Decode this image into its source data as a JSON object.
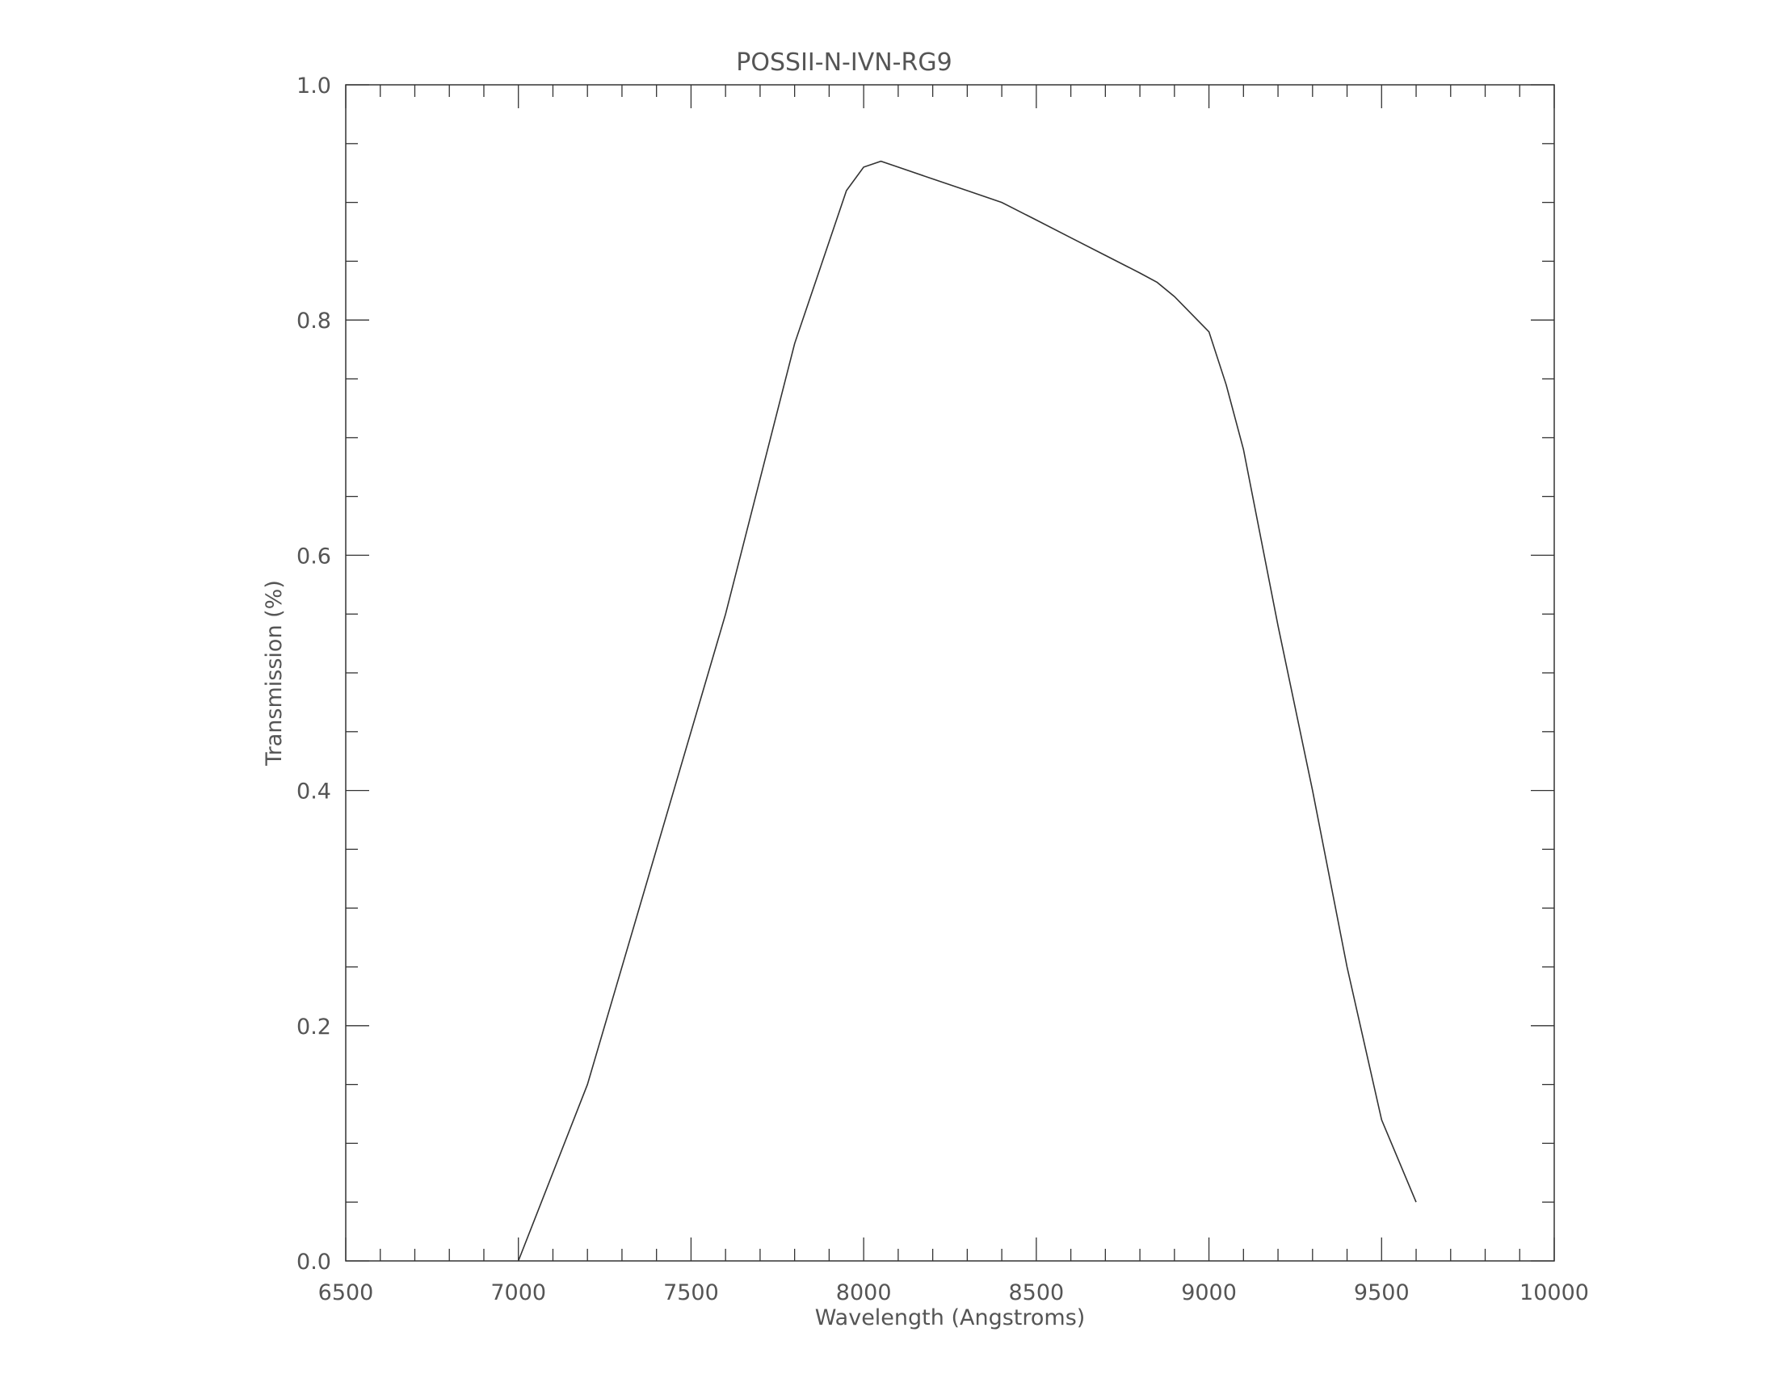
{
  "chart_data": {
    "type": "line",
    "title": "POSSII-N-IVN-RG9",
    "xlabel": "Wavelength (Angstroms)",
    "ylabel": "Transmission (%)",
    "xlim": [
      6500,
      10000
    ],
    "ylim": [
      0.0,
      1.0
    ],
    "x_ticks": [
      6500,
      7000,
      7500,
      8000,
      8500,
      9000,
      9500,
      10000
    ],
    "x_tick_labels": [
      "6500",
      "7000",
      "7500",
      "8000",
      "8500",
      "9000",
      "9500",
      "10000"
    ],
    "y_ticks": [
      0.0,
      0.2,
      0.4,
      0.6,
      0.8,
      1.0
    ],
    "y_tick_labels": [
      "0.0",
      "0.2",
      "0.4",
      "0.6",
      "0.8",
      "1.0"
    ],
    "x_minor_step": 100,
    "y_minor_step": 0.05,
    "grid": false,
    "line_color": "#333333",
    "series": [
      {
        "x": [
          7000,
          7200,
          7400,
          7600,
          7800,
          7950,
          8000,
          8050,
          8100,
          8200,
          8300,
          8400,
          8500,
          8600,
          8700,
          8800,
          8850,
          8900,
          8950,
          9000,
          9050,
          9100,
          9200,
          9300,
          9400,
          9500,
          9600
        ],
        "y": [
          0.0,
          0.15,
          0.35,
          0.55,
          0.78,
          0.91,
          0.93,
          0.935,
          0.93,
          0.92,
          0.91,
          0.9,
          0.885,
          0.87,
          0.855,
          0.84,
          0.832,
          0.82,
          0.805,
          0.79,
          0.745,
          0.69,
          0.54,
          0.4,
          0.25,
          0.12,
          0.05
        ]
      }
    ]
  }
}
